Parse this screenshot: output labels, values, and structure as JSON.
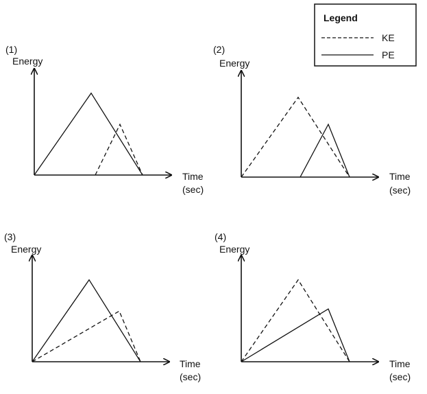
{
  "legend": {
    "title": "Legend",
    "items": [
      {
        "label": "KE",
        "style": "dashed"
      },
      {
        "label": "PE",
        "style": "solid"
      }
    ]
  },
  "graphs": [
    {
      "number": "(1)",
      "ylabel": "Energy",
      "xlabel_line1": "Time",
      "xlabel_line2": "(sec)",
      "chart_data": {
        "type": "line",
        "xlim": [
          0,
          10
        ],
        "ylim": [
          0,
          10
        ],
        "series": [
          {
            "name": "PE",
            "style": "solid",
            "points": [
              [
                0,
                0
              ],
              [
                4.15,
                7.6
              ],
              [
                7.9,
                0
              ]
            ]
          },
          {
            "name": "KE",
            "style": "dashed",
            "points": [
              [
                4.45,
                0
              ],
              [
                6.25,
                4.7
              ],
              [
                7.9,
                0
              ]
            ]
          }
        ]
      }
    },
    {
      "number": "(2)",
      "ylabel": "Energy",
      "xlabel_line1": "Time",
      "xlabel_line2": "(sec)",
      "chart_data": {
        "type": "line",
        "xlim": [
          0,
          10
        ],
        "ylim": [
          0,
          10
        ],
        "series": [
          {
            "name": "KE",
            "style": "dashed",
            "points": [
              [
                0,
                0
              ],
              [
                4.15,
                7.4
              ],
              [
                7.9,
                0
              ]
            ]
          },
          {
            "name": "PE",
            "style": "solid",
            "points": [
              [
                4.3,
                0
              ],
              [
                6.35,
                4.9
              ],
              [
                7.9,
                0
              ]
            ]
          }
        ]
      }
    },
    {
      "number": "(3)",
      "ylabel": "Energy",
      "xlabel_line1": "Time",
      "xlabel_line2": "(sec)",
      "chart_data": {
        "type": "line",
        "xlim": [
          0,
          10
        ],
        "ylim": [
          0,
          10
        ],
        "series": [
          {
            "name": "PE",
            "style": "solid",
            "points": [
              [
                0,
                0
              ],
              [
                4.15,
                7.6
              ],
              [
                7.9,
                0
              ]
            ]
          },
          {
            "name": "KE",
            "style": "dashed",
            "points": [
              [
                0,
                0
              ],
              [
                6.35,
                4.7
              ],
              [
                7.9,
                0
              ]
            ]
          }
        ]
      }
    },
    {
      "number": "(4)",
      "ylabel": "Energy",
      "xlabel_line1": "Time",
      "xlabel_line2": "(sec)",
      "chart_data": {
        "type": "line",
        "xlim": [
          0,
          10
        ],
        "ylim": [
          0,
          10
        ],
        "series": [
          {
            "name": "KE",
            "style": "dashed",
            "points": [
              [
                0,
                0
              ],
              [
                4.15,
                7.6
              ],
              [
                7.9,
                0
              ]
            ]
          },
          {
            "name": "PE",
            "style": "solid",
            "points": [
              [
                0,
                0
              ],
              [
                6.35,
                4.9
              ],
              [
                7.9,
                0
              ]
            ]
          }
        ]
      }
    }
  ]
}
